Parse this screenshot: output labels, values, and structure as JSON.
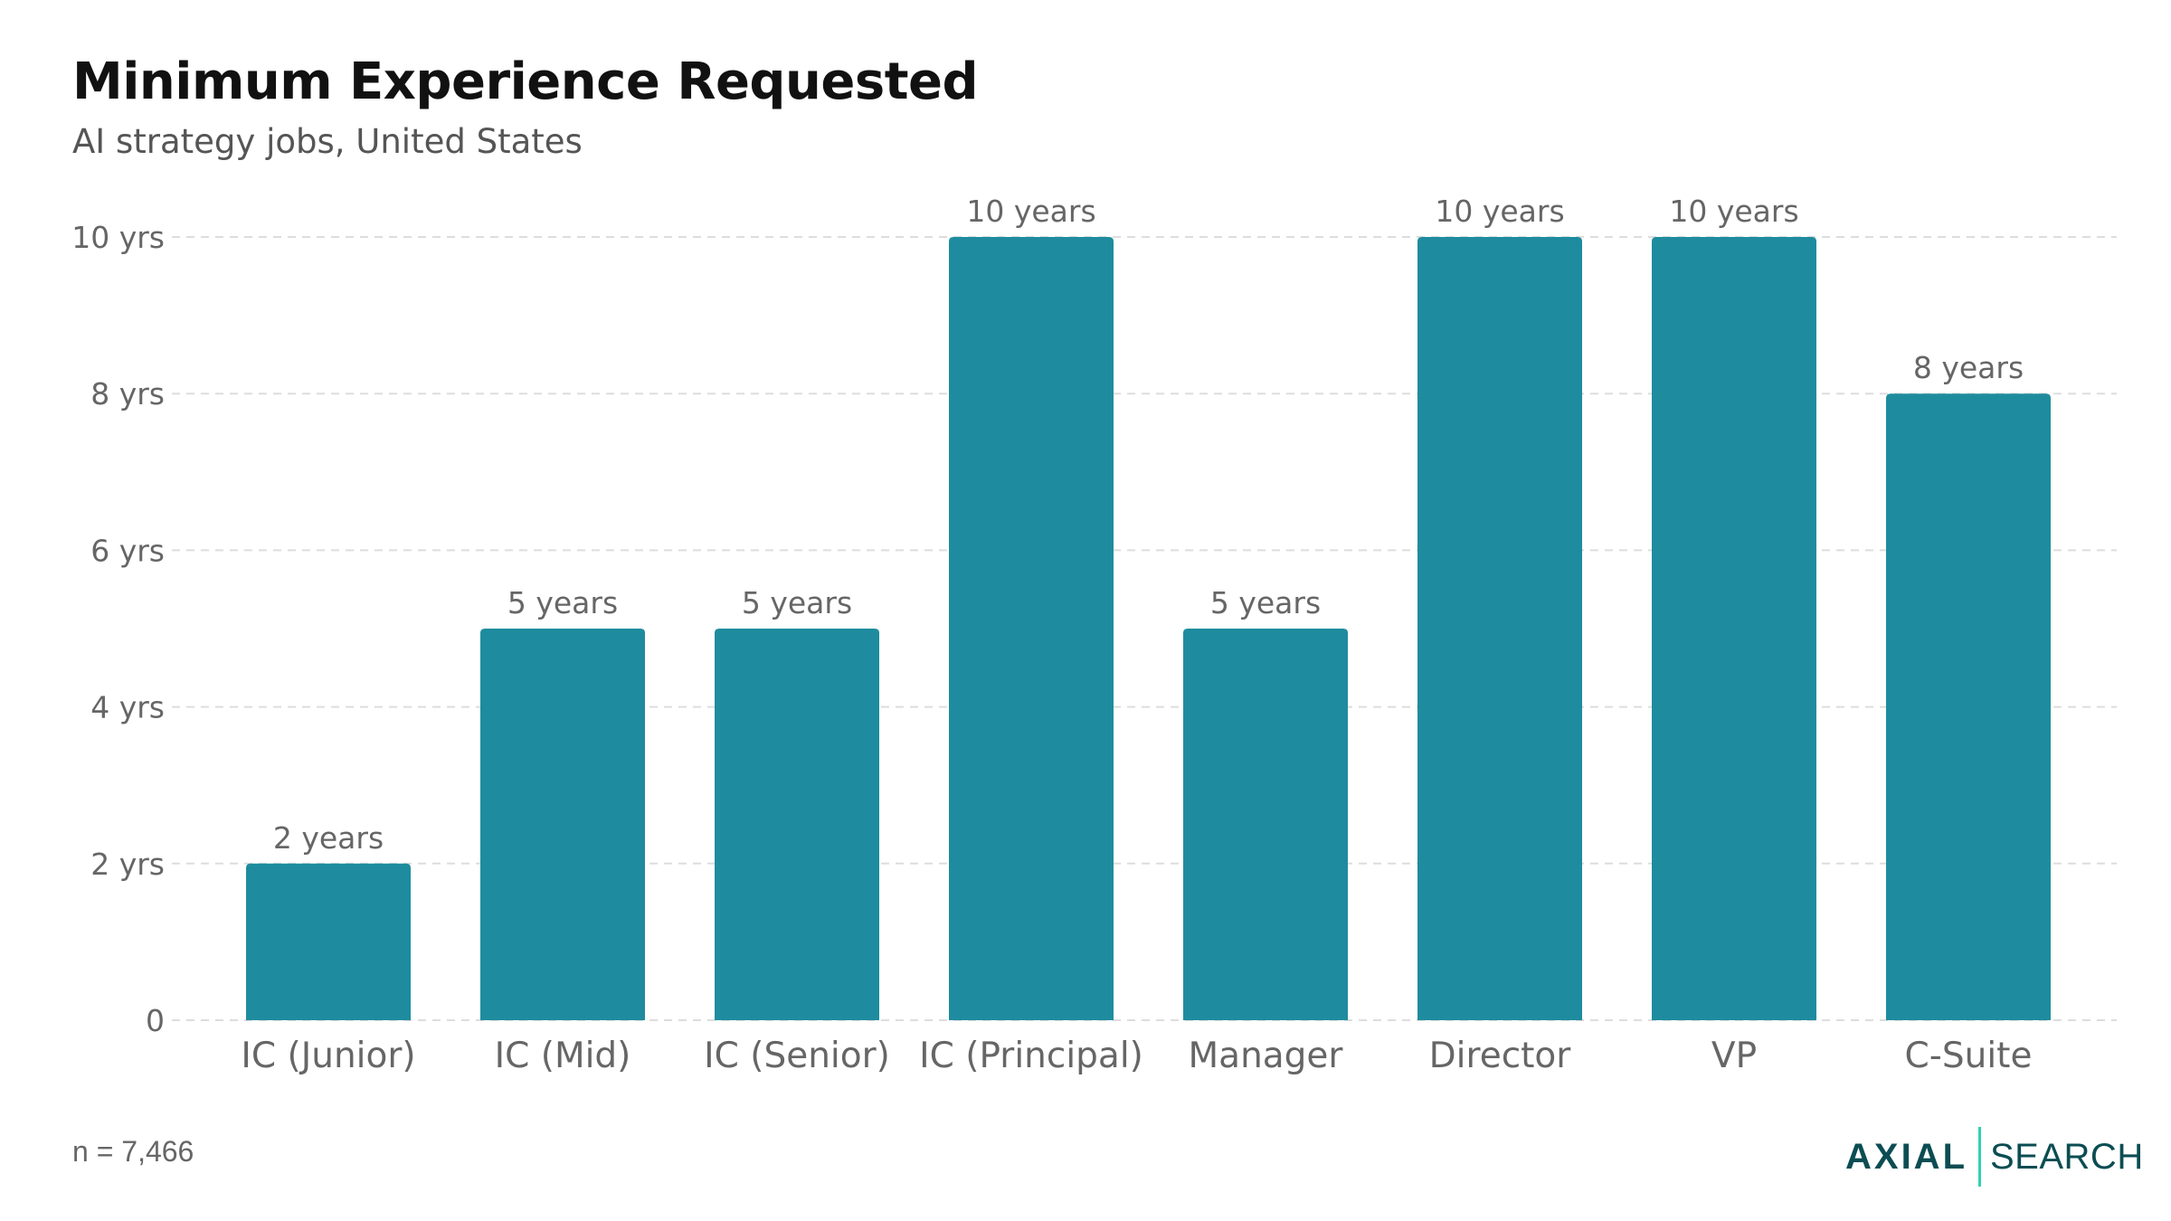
{
  "chart_data": {
    "type": "bar",
    "title": "Minimum Experience Requested",
    "subtitle": "AI strategy jobs, United States",
    "categories": [
      "IC (Junior)",
      "IC (Mid)",
      "IC (Senior)",
      "IC (Principal)",
      "Manager",
      "Director",
      "VP",
      "C-Suite"
    ],
    "values": [
      2,
      5,
      5,
      10,
      5,
      10,
      10,
      8
    ],
    "data_labels": [
      "2 years",
      "5 years",
      "5 years",
      "10 years",
      "5 years",
      "10 years",
      "10 years",
      "8 years"
    ],
    "yticks": [
      0,
      2,
      4,
      6,
      8,
      10
    ],
    "ytick_labels": [
      "0",
      "2 yrs",
      "4 yrs",
      "6 yrs",
      "8 yrs",
      "10 yrs"
    ],
    "ylim": [
      0,
      10
    ],
    "grid": true,
    "legend": false,
    "bar_color": "#1e8c9e"
  },
  "footer": {
    "note": "n = 7,466"
  },
  "logo": {
    "wordmark": "AXIAL",
    "suffix": "SEARCH",
    "color": "#0b4d53",
    "divider_color": "#2fd3b0"
  }
}
